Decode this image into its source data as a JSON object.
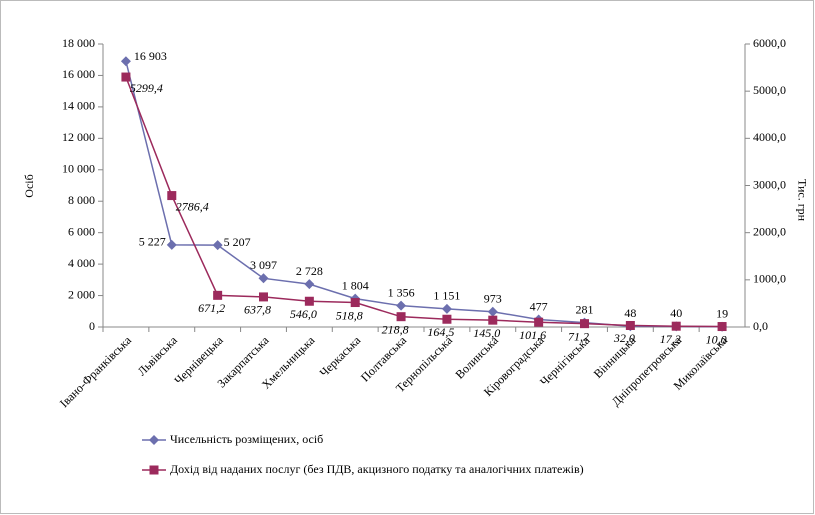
{
  "chart_data": {
    "type": "line",
    "categories": [
      "Івано-Франківська",
      "Львівська",
      "Чернівецька",
      "Закарпатська",
      "Хмельницька",
      "Черкаська",
      "Полтавська",
      "Тернопільська",
      "Волинська",
      "Кіровоградська",
      "Чернігівська",
      "Вінницька",
      "Дніпропетровська",
      "Миколаївська"
    ],
    "series": [
      {
        "name": "Чисельність розміщених, осіб",
        "color": "#6c6fae",
        "marker": "diamond",
        "values": [
          16903,
          5227,
          5207,
          3097,
          2728,
          1804,
          1356,
          1151,
          973,
          477,
          281,
          48,
          40,
          19
        ],
        "value_labels": [
          "16 903",
          "5 227",
          "5 207",
          "3 097",
          "2 728",
          "1 804",
          "1 356",
          "1 151",
          "973",
          "477",
          "281",
          "48",
          "40",
          "19"
        ]
      },
      {
        "name": "Дохід від наданих послуг (без ПДВ, акцизного податку та аналогічних платежів)",
        "color": "#9c2a5c",
        "marker": "square",
        "axis": "y2",
        "values": [
          5299.4,
          2786.4,
          671.2,
          637.8,
          546.0,
          518.8,
          218.8,
          164.5,
          145.0,
          101.6,
          71.2,
          32.0,
          17.2,
          10.0
        ],
        "value_labels": [
          "5299,4",
          "2786,4",
          "671,2",
          "637,8",
          "546,0",
          "518,8",
          "218,8",
          "164,5",
          "145,0",
          "101,6",
          "71,2",
          "32,0",
          "17,2",
          "10,0"
        ]
      }
    ],
    "ylabel": "Осіб",
    "y2label": "Тис. грн",
    "ylim": [
      0,
      18000
    ],
    "yticks": [
      0,
      {
        "value": 2000,
        "label": "2 000"
      },
      {
        "value": 4000,
        "label": "4 000"
      },
      {
        "value": 6000,
        "label": "6 000"
      },
      {
        "value": 8000,
        "label": "8 000"
      },
      {
        "value": 10000,
        "label": "10 000"
      },
      {
        "value": 12000,
        "label": "12 000"
      },
      {
        "value": 14000,
        "label": "14 000"
      },
      {
        "value": 16000,
        "label": "16 000"
      },
      {
        "value": 18000,
        "label": "18 000"
      }
    ],
    "y2lim": [
      0,
      6000
    ],
    "y2ticks": [
      {
        "value": 0,
        "label": "0,0"
      },
      {
        "value": 1000,
        "label": "1000,0"
      },
      {
        "value": 2000,
        "label": "2000,0"
      },
      {
        "value": 3000,
        "label": "3000,0"
      },
      {
        "value": 4000,
        "label": "4000,0"
      },
      {
        "value": 5000,
        "label": "5000,0"
      },
      {
        "value": 6000,
        "label": "6000,0"
      }
    ],
    "legend": "bottom-left"
  }
}
